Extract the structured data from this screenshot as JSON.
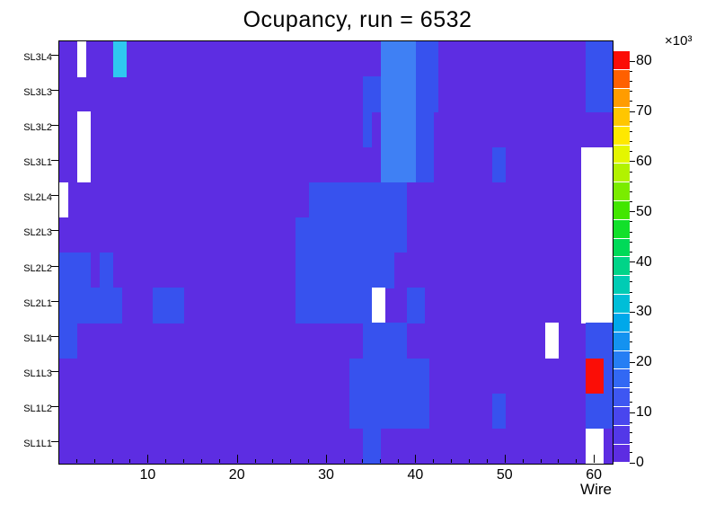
{
  "title": "Ocupancy, run = 6532",
  "chart_data": {
    "type": "heatmap",
    "title": "Ocupancy, run = 6532",
    "xlabel": "Wire",
    "ylabel": "",
    "x_range": [
      0,
      62
    ],
    "x_major_ticks": [
      10,
      20,
      30,
      40,
      50,
      60
    ],
    "x_minor_tick_step": 2,
    "rows_top_to_bottom": [
      "SL3L4",
      "SL3L3",
      "SL3L2",
      "SL3L1",
      "SL2L4",
      "SL2L3",
      "SL2L2",
      "SL2L1",
      "SL1L4",
      "SL1L3",
      "SL1L2",
      "SL1L1"
    ],
    "base_value": 5000,
    "value_colors": {
      "0": "#ffffff",
      "5000": "#5d2de2",
      "12000": "#3752ee",
      "15000": "#3f80f4",
      "20000": "#2fc8f0",
      "82000": "#fb0d06"
    },
    "cells": {
      "SL3L4": [
        [
          2,
          3,
          0
        ],
        [
          6,
          7.5,
          20000
        ],
        [
          36,
          40,
          15000
        ],
        [
          40,
          42.5,
          12000
        ],
        [
          59,
          62,
          12000
        ]
      ],
      "SL3L3": [
        [
          34,
          36,
          12000
        ],
        [
          36,
          40,
          15000
        ],
        [
          40,
          42.5,
          12000
        ],
        [
          59,
          62,
          12000
        ]
      ],
      "SL3L2": [
        [
          2,
          3.5,
          0
        ],
        [
          34,
          35,
          12000
        ],
        [
          36,
          40,
          15000
        ],
        [
          40,
          42,
          12000
        ]
      ],
      "SL3L1": [
        [
          2,
          3.5,
          0
        ],
        [
          36,
          40,
          15000
        ],
        [
          40,
          42,
          12000
        ],
        [
          48.5,
          50,
          12000
        ],
        [
          58.5,
          62,
          0
        ]
      ],
      "SL2L4": [
        [
          0,
          1,
          0
        ],
        [
          28,
          39,
          12000
        ],
        [
          58.5,
          62,
          0
        ]
      ],
      "SL2L3": [
        [
          26.5,
          39,
          12000
        ],
        [
          58.5,
          62,
          0
        ]
      ],
      "SL2L2": [
        [
          0,
          3.5,
          12000
        ],
        [
          4.5,
          6,
          12000
        ],
        [
          26.5,
          37.5,
          12000
        ],
        [
          58.5,
          62,
          0
        ]
      ],
      "SL2L1": [
        [
          0,
          7,
          12000
        ],
        [
          10.5,
          14,
          12000
        ],
        [
          26.5,
          35,
          12000
        ],
        [
          35,
          36.5,
          0
        ],
        [
          39,
          41,
          12000
        ],
        [
          58.5,
          62,
          0
        ]
      ],
      "SL1L4": [
        [
          0,
          2,
          12000
        ],
        [
          34,
          39,
          12000
        ],
        [
          54.5,
          56,
          0
        ],
        [
          59,
          62,
          12000
        ]
      ],
      "SL1L3": [
        [
          32.5,
          41.5,
          12000
        ],
        [
          59,
          61,
          82000
        ],
        [
          61,
          62,
          12000
        ]
      ],
      "SL1L2": [
        [
          32.5,
          41.5,
          12000
        ],
        [
          48.5,
          50,
          12000
        ],
        [
          59,
          62,
          12000
        ]
      ],
      "SL1L1": [
        [
          34,
          36,
          12000
        ],
        [
          59,
          61,
          0
        ]
      ]
    },
    "colorbar": {
      "scale_label": "×10³",
      "tick_values": [
        0,
        10,
        20,
        30,
        40,
        50,
        60,
        70,
        80
      ],
      "max_value_thousands": 82,
      "minor_tick_step": 2,
      "band_colors_bottom_to_top": [
        "#5d2de2",
        "#5338e8",
        "#4946ee",
        "#3e57f2",
        "#3268f4",
        "#267ef4",
        "#1492f0",
        "#00a8ea",
        "#00bed8",
        "#00ccb4",
        "#00d488",
        "#00da58",
        "#12e02a",
        "#42e600",
        "#7aec00",
        "#b2f200",
        "#e4f600",
        "#ffe800",
        "#ffc600",
        "#ff9c00",
        "#ff6000",
        "#fb0d06"
      ]
    }
  }
}
